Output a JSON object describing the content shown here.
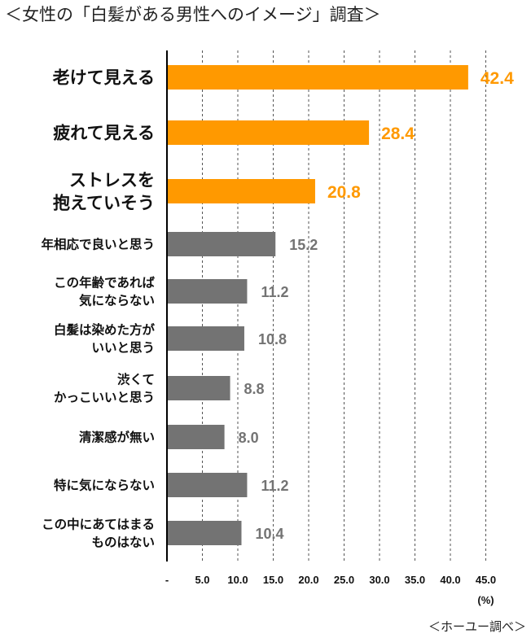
{
  "title": "＜女性の「白髪がある男性へのイメージ」調査＞",
  "source": "＜ホーユー調べ＞",
  "colors": {
    "highlight": "#FF9900",
    "normal": "#737373",
    "grid": "#555555",
    "axis": "#000000"
  },
  "chart_data": {
    "type": "bar",
    "orientation": "horizontal",
    "title": "＜女性の「白髪がある男性へのイメージ」調査＞",
    "xlabel": "(%)",
    "ylabel": "",
    "xlim": [
      0,
      45
    ],
    "tick_labels": [
      "-",
      "5.0",
      "10.0",
      "15.0",
      "20.0",
      "25.0",
      "30.0",
      "35.0",
      "40.0",
      "45.0"
    ],
    "grid": "vertical dashed",
    "categories": [
      [
        "老けて見える"
      ],
      [
        "疲れて見える"
      ],
      [
        "ストレスを",
        "抱えていそう"
      ],
      [
        "年相応で良いと思う"
      ],
      [
        "この年齢であれば",
        "気にならない"
      ],
      [
        "白髪は染めた方が",
        "いいと思う"
      ],
      [
        "渋くて",
        "かっこいいと思う"
      ],
      [
        "清潔感が無い"
      ],
      [
        "特に気にならない"
      ],
      [
        "この中にあてはまる",
        "ものはない"
      ]
    ],
    "values": [
      42.4,
      28.4,
      20.8,
      15.2,
      11.2,
      10.8,
      8.8,
      8.0,
      11.2,
      10.4
    ],
    "value_labels": [
      "42.4",
      "28.4",
      "20.8",
      "15.2",
      "11.2",
      "10.8",
      "8.8",
      "8.0",
      "11.2",
      "10.4"
    ],
    "highlighted": [
      true,
      true,
      true,
      false,
      false,
      false,
      false,
      false,
      false,
      false
    ]
  }
}
